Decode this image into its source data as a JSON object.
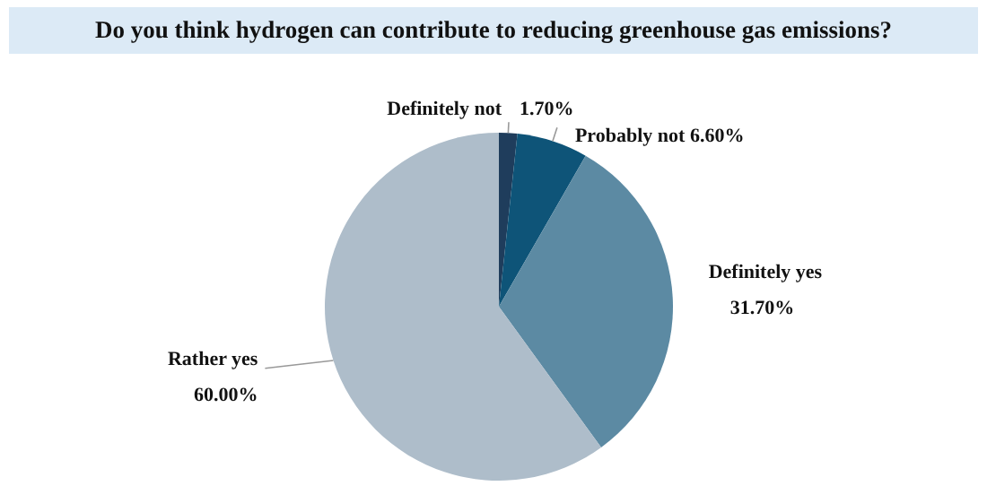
{
  "chart_data": {
    "type": "pie",
    "title": "Do you think hydrogen can contribute to reducing greenhouse gas emissions?",
    "categories": [
      "Definitely not",
      "Probably not",
      "Definitely yes",
      "Rather yes"
    ],
    "values": [
      1.7,
      6.6,
      31.7,
      60.0
    ],
    "value_labels": [
      "1.70%",
      "6.60%",
      "31.70%",
      "60.00%"
    ],
    "colors": [
      "#1f3d5c",
      "#0e5478",
      "#5c8aa3",
      "#aebdca"
    ]
  }
}
